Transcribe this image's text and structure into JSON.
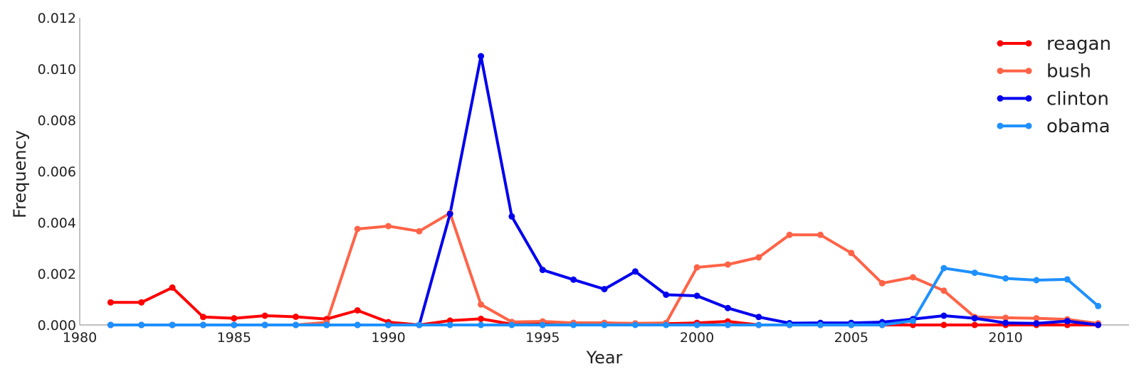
{
  "chart_data": {
    "type": "line",
    "title": "",
    "xlabel": "Year",
    "ylabel": "Frequency",
    "xlim": [
      1980,
      2014
    ],
    "ylim": [
      0,
      0.012
    ],
    "grid": false,
    "legend_position": "top-right",
    "x_ticks": [
      {
        "value": 1980,
        "label": "1980"
      },
      {
        "value": 1985,
        "label": "1985"
      },
      {
        "value": 1990,
        "label": "1990"
      },
      {
        "value": 1995,
        "label": "1995"
      },
      {
        "value": 2000,
        "label": "2000"
      },
      {
        "value": 2005,
        "label": "2005"
      },
      {
        "value": 2010,
        "label": "2010"
      }
    ],
    "y_ticks": [
      {
        "value": 0,
        "label": "0.000"
      },
      {
        "value": 0.002,
        "label": "0.002"
      },
      {
        "value": 0.004,
        "label": "0.004"
      },
      {
        "value": 0.006,
        "label": "0.006"
      },
      {
        "value": 0.008,
        "label": "0.008"
      },
      {
        "value": 0.01,
        "label": "0.010"
      },
      {
        "value": 0.012,
        "label": "0.012"
      }
    ],
    "x": [
      1981,
      1982,
      1983,
      1984,
      1985,
      1986,
      1987,
      1988,
      1989,
      1990,
      1991,
      1992,
      1993,
      1994,
      1995,
      1996,
      1997,
      1998,
      1999,
      2000,
      2001,
      2002,
      2003,
      2004,
      2005,
      2006,
      2007,
      2008,
      2009,
      2010,
      2011,
      2012,
      2013
    ],
    "series": [
      {
        "name": "reagan",
        "color": "#ff0000",
        "values": [
          0.00088,
          0.00088,
          0.00146,
          0.00031,
          0.00026,
          0.00036,
          0.00032,
          0.00023,
          0.00057,
          0.00011,
          0.0,
          0.00017,
          0.00024,
          3e-05,
          5e-05,
          8e-05,
          8e-05,
          5e-05,
          5e-05,
          8e-05,
          0.00014,
          0.0,
          0.0,
          0.0,
          0.0,
          0.0,
          0.0,
          0.0,
          0.0,
          0.0,
          0.0,
          0.0,
          0.0
        ]
      },
      {
        "name": "bush",
        "color": "#ff6347",
        "values": [
          0.0,
          0.0,
          0.0,
          0.0,
          0.0,
          0.0,
          0.0,
          0.0001,
          0.00375,
          0.00386,
          0.00366,
          0.00437,
          0.0008,
          0.00012,
          0.00014,
          8e-05,
          8e-05,
          6e-05,
          8e-05,
          0.00225,
          0.00236,
          0.00264,
          0.00352,
          0.00352,
          0.00281,
          0.00163,
          0.00186,
          0.00134,
          0.00031,
          0.00028,
          0.00026,
          0.00022,
          6e-05
        ]
      },
      {
        "name": "clinton",
        "color": "#0000ee",
        "values": [
          0.0,
          0.0,
          0.0,
          0.0,
          0.0,
          0.0,
          0.0,
          0.0,
          0.0,
          0.0,
          0.0,
          0.00434,
          0.0105,
          0.00424,
          0.00215,
          0.00177,
          0.0014,
          0.00209,
          0.00118,
          0.00114,
          0.00066,
          0.00031,
          7e-05,
          8e-05,
          8e-05,
          0.00011,
          0.00023,
          0.00036,
          0.00026,
          8e-05,
          6e-05,
          0.00015,
          0.0
        ]
      },
      {
        "name": "obama",
        "color": "#1e90ff",
        "values": [
          0.0,
          0.0,
          0.0,
          0.0,
          0.0,
          0.0,
          0.0,
          0.0,
          0.0,
          0.0,
          0.0,
          0.0,
          0.0,
          0.0,
          0.0,
          0.0,
          0.0,
          0.0,
          0.0,
          0.0,
          0.0,
          0.0,
          0.0,
          0.0,
          0.0,
          0.0,
          0.00016,
          0.00222,
          0.00204,
          0.00182,
          0.00175,
          0.00178,
          0.00074
        ]
      }
    ]
  }
}
